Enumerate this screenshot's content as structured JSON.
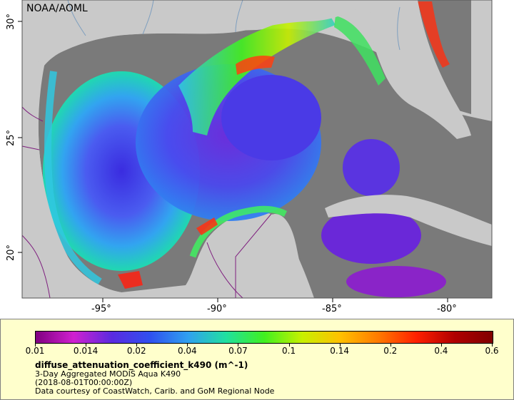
{
  "map": {
    "credit": "NOAA/AOML",
    "lon_labels": [
      "-95°",
      "-90°",
      "-85°",
      "-80°"
    ],
    "lat_labels": [
      "30°",
      "25°",
      "20°"
    ],
    "lon_range": [
      -98.0,
      -78.0
    ],
    "lat_range": [
      18.0,
      31.0
    ],
    "colors": {
      "land": "#c9c9c9",
      "nodata": "#7a7a7a",
      "coast": "#7f9fbf",
      "border": "#7f1f7f"
    }
  },
  "legend": {
    "ticks": [
      "0.01",
      "0.014",
      "0.02",
      "0.04",
      "0.07",
      "0.1",
      "0.14",
      "0.2",
      "0.4",
      "0.6"
    ],
    "title": "diffuse_attenuation_coefficient_k490 (m^-1)",
    "line1": "3-Day Aggregated MODIS Aqua K490",
    "line2": "(2018-08-01T00:00:00Z)",
    "line3": "Data courtesy of CoastWatch, Carib. and GoM Regional Node",
    "colors": [
      "#800080",
      "#d020d0",
      "#5a2ae0",
      "#3050f0",
      "#30a0f0",
      "#20e0a0",
      "#40f020",
      "#c8f000",
      "#ffc000",
      "#ff7a00",
      "#ff2000",
      "#b00000",
      "#800000"
    ]
  }
}
